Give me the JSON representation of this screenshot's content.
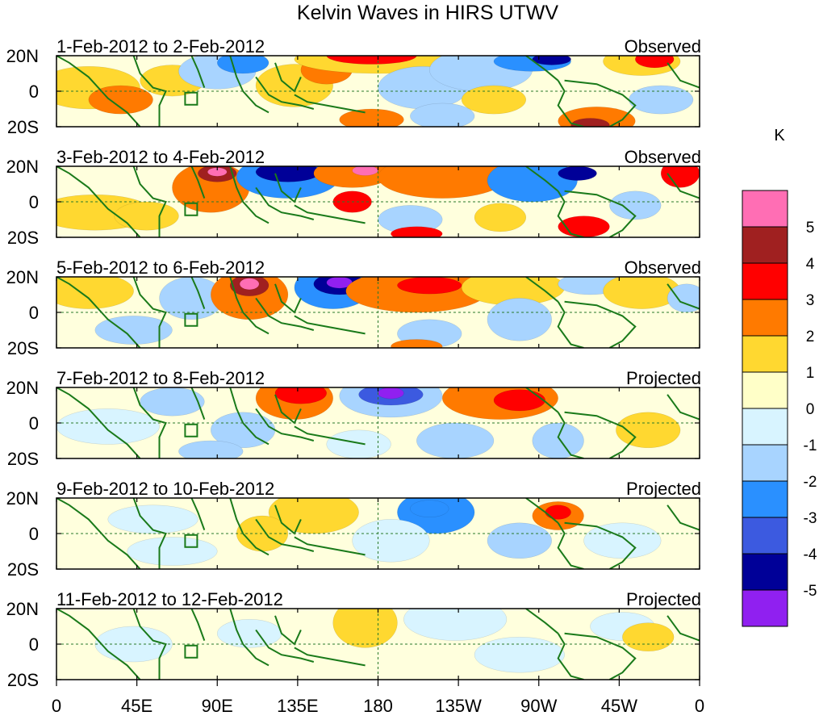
{
  "title": "Kelvin Waves in HIRS UTWV",
  "panels": [
    {
      "label": "1-Feb-2012 to 2-Feb-2012",
      "status": "Observed"
    },
    {
      "label": "3-Feb-2012 to 4-Feb-2012",
      "status": "Observed"
    },
    {
      "label": "5-Feb-2012 to 6-Feb-2012",
      "status": "Observed"
    },
    {
      "label": "7-Feb-2012 to 8-Feb-2012",
      "status": "Projected"
    },
    {
      "label": "9-Feb-2012 to 10-Feb-2012",
      "status": "Projected"
    },
    {
      "label": "11-Feb-2012 to 12-Feb-2012",
      "status": "Projected"
    }
  ],
  "lat_ticks": [
    "20N",
    "0",
    "20S"
  ],
  "lon_ticks": [
    "0",
    "45E",
    "90E",
    "135E",
    "180",
    "135W",
    "90W",
    "45W",
    "0"
  ],
  "colorbar": {
    "unit": "K",
    "labels": [
      "5",
      "4",
      "3",
      "2",
      "1",
      "0",
      "-1",
      "-2",
      "-3",
      "-4",
      "-5"
    ],
    "colors": [
      "#ff6eb4",
      "#a02020",
      "#ff0000",
      "#ff7a00",
      "#ffd830",
      "#ffffc8",
      "#d8f4ff",
      "#a8d4ff",
      "#2a90ff",
      "#3c5ae0",
      "#000098",
      "#9020f0"
    ]
  },
  "map_colors": {
    "coast": "#1a7a1a",
    "neutral": "#ffffdd"
  }
}
